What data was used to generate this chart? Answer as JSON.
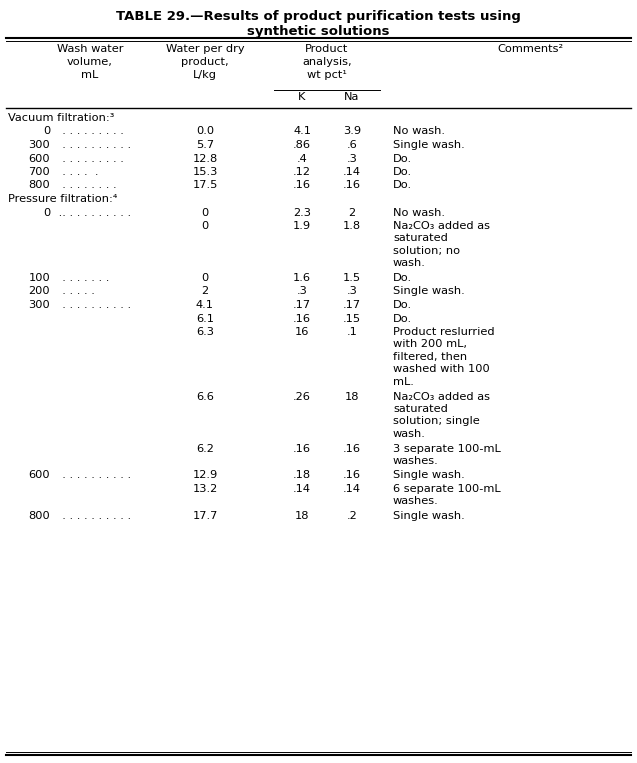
{
  "title_line1": "TABLE 29.—Results of product purification tests using",
  "title_line2": "synthetic solutions",
  "background": "#ffffff",
  "font_size": 8.2,
  "title_font_size": 9.5,
  "rows": [
    {
      "wash": "Vacuum filtration:³",
      "water": "",
      "K": "",
      "Na": "",
      "comment": "",
      "type": "section",
      "lines": 1
    },
    {
      "wash": "0",
      "dots": "  . . . . . . . . .",
      "water": "0.0",
      "K": "4.1",
      "Na": "3.9",
      "comment": "No wash.",
      "type": "data",
      "lines": 1
    },
    {
      "wash": "300",
      "dots": "  . . . . . . . . . .",
      "water": "5.7",
      "K": ".86",
      "Na": ".6",
      "comment": "Single wash.",
      "type": "data",
      "lines": 1
    },
    {
      "wash": "600",
      "dots": "  . . . . . . . . .",
      "water": "12.8",
      "K": ".4",
      "Na": ".3",
      "comment": "Do.",
      "type": "data",
      "lines": 1
    },
    {
      "wash": "700",
      "dots": "  . . . .  .",
      "water": "15.3",
      "K": ".12",
      "Na": ".14",
      "comment": "Do.",
      "type": "data",
      "lines": 1
    },
    {
      "wash": "800",
      "dots": "  . . . . . . . .",
      "water": "17.5",
      "K": ".16",
      "Na": ".16",
      "comment": "Do.",
      "type": "data",
      "lines": 1
    },
    {
      "wash": "Pressure filtration:⁴",
      "water": "",
      "K": "",
      "Na": "",
      "comment": "",
      "type": "section",
      "lines": 1
    },
    {
      "wash": "0",
      "dots": " .. . . . . . . . . .",
      "water": "0",
      "K": "2.3",
      "Na": "2",
      "comment": "No wash.",
      "type": "data",
      "lines": 1
    },
    {
      "wash": "",
      "dots": "",
      "water": "0",
      "K": "1.9",
      "Na": "1.8",
      "comment": "Na₂CO₃ added as\nsaturated\nsolution; no\nwash.",
      "type": "data",
      "lines": 4
    },
    {
      "wash": "100",
      "dots": "  . . . . . . .",
      "water": "0",
      "K": "1.6",
      "Na": "1.5",
      "comment": "Do.",
      "type": "data",
      "lines": 1
    },
    {
      "wash": "200",
      "dots": "  . . . . .",
      "water": "2",
      "K": ".3",
      "Na": ".3",
      "comment": "Single wash.",
      "type": "data",
      "lines": 1
    },
    {
      "wash": "300",
      "dots": "  . . . . . . . . . .",
      "water": "4.1",
      "K": ".17",
      "Na": ".17",
      "comment": "Do.",
      "type": "data",
      "lines": 1
    },
    {
      "wash": "",
      "dots": "",
      "water": "6.1",
      "K": ".16",
      "Na": ".15",
      "comment": "Do.",
      "type": "data",
      "lines": 1
    },
    {
      "wash": "",
      "dots": "",
      "water": "6.3",
      "K": "16",
      "Na": ".1",
      "comment": "Product reslurried\nwith 200 mL,\nfiltered, then\nwashed with 100\nmL.",
      "type": "data",
      "lines": 5
    },
    {
      "wash": "",
      "dots": "",
      "water": "6.6",
      "K": ".26",
      "Na": "18",
      "comment": "Na₂CO₃ added as\nsaturated\nsolution; single\nwash.",
      "type": "data",
      "lines": 4
    },
    {
      "wash": "",
      "dots": "",
      "water": "6.2",
      "K": ".16",
      "Na": ".16",
      "comment": "3 separate 100-mL\nwashes.",
      "type": "data",
      "lines": 2
    },
    {
      "wash": "600",
      "dots": "  . . . . . . . . . .",
      "water": "12.9",
      "K": ".18",
      "Na": ".16",
      "comment": "Single wash.",
      "type": "data",
      "lines": 1
    },
    {
      "wash": "",
      "dots": "",
      "water": "13.2",
      "K": ".14",
      "Na": ".14",
      "comment": "6 separate 100-mL\nwashes.",
      "type": "data",
      "lines": 2
    },
    {
      "wash": "800",
      "dots": "  . . . . . . . . . .",
      "water": "17.7",
      "K": "18",
      "Na": ".2",
      "comment": "Single wash.",
      "type": "data",
      "lines": 1
    }
  ]
}
